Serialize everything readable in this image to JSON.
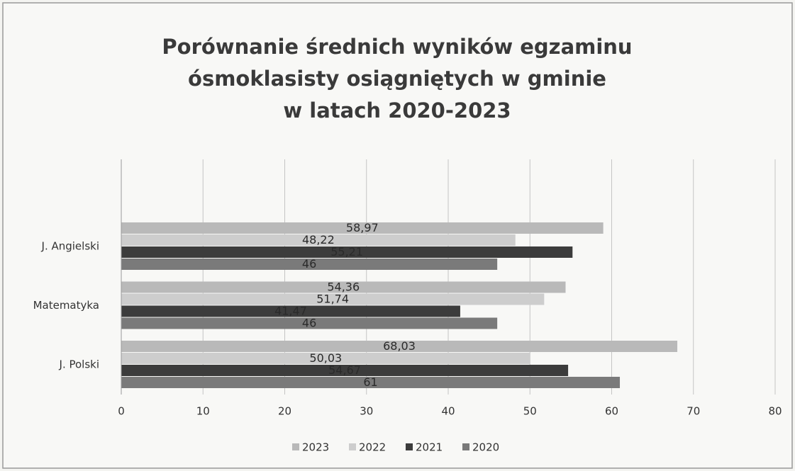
{
  "chart_data": {
    "type": "barh",
    "title": [
      "Porównanie średnich wyników egzaminu",
      "ósmoklasisty osiągniętych w gminie",
      "w latach 2020-2023"
    ],
    "categories": [
      "J. Polski",
      "Matematyka",
      "J. Angielski"
    ],
    "series": [
      {
        "name": "2023",
        "color": "#b9b9b9",
        "values": [
          68.03,
          54.36,
          58.97
        ],
        "value_labels": [
          "68,03",
          "54,36",
          "58,97"
        ]
      },
      {
        "name": "2022",
        "color": "#cdcdcd",
        "values": [
          50.03,
          51.74,
          48.22
        ],
        "value_labels": [
          "50,03",
          "51,74",
          "48,22"
        ]
      },
      {
        "name": "2021",
        "color": "#3c3c3c",
        "values": [
          54.67,
          41.47,
          55.21
        ],
        "value_labels": [
          "54,67",
          "41,47",
          "55,21"
        ]
      },
      {
        "name": "2020",
        "color": "#7a7a7a",
        "values": [
          61,
          46,
          46
        ],
        "value_labels": [
          "61",
          "46",
          "46"
        ]
      }
    ],
    "xlim": [
      0,
      80
    ],
    "xticks": [
      0,
      10,
      20,
      30,
      40,
      50,
      60,
      70,
      80
    ],
    "grid": true,
    "legend": "bottom"
  }
}
